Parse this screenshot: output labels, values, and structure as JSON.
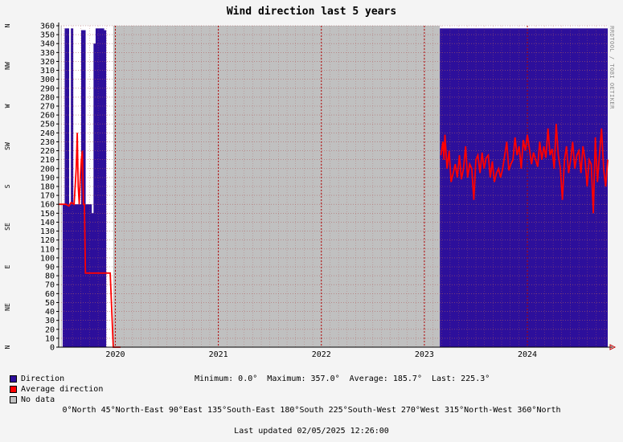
{
  "chart_data": {
    "type": "bar",
    "title": "Wind direction last 5 years",
    "ylim": [
      0,
      360
    ],
    "y_ticks": [
      0,
      10,
      20,
      30,
      40,
      50,
      60,
      70,
      80,
      90,
      100,
      110,
      120,
      130,
      140,
      150,
      160,
      170,
      180,
      190,
      200,
      210,
      220,
      230,
      240,
      250,
      260,
      270,
      280,
      290,
      300,
      310,
      320,
      330,
      340,
      350,
      360
    ],
    "compass_ticks": [
      {
        "value": 0,
        "label": "N"
      },
      {
        "value": 45,
        "label": "NE"
      },
      {
        "value": 90,
        "label": "E"
      },
      {
        "value": 135,
        "label": "SE"
      },
      {
        "value": 180,
        "label": "S"
      },
      {
        "value": 225,
        "label": "SW"
      },
      {
        "value": 270,
        "label": "W"
      },
      {
        "value": 315,
        "label": "NW"
      },
      {
        "value": 360,
        "label": "N"
      }
    ],
    "x_start": 2019.45,
    "x_end": 2024.78,
    "year_ticks": [
      {
        "value": 2020,
        "label": "2020"
      },
      {
        "value": 2021,
        "label": "2021"
      },
      {
        "value": 2022,
        "label": "2022"
      },
      {
        "value": 2023,
        "label": "2023"
      },
      {
        "value": 2024,
        "label": "2024"
      }
    ],
    "no_data_ranges": [
      [
        2019.47,
        2019.48
      ],
      [
        2019.98,
        2023.15
      ]
    ],
    "direction_bars": [
      {
        "x": 2019.5,
        "value": 160
      },
      {
        "x": 2019.52,
        "value": 357
      },
      {
        "x": 2019.54,
        "value": 357
      },
      {
        "x": 2019.56,
        "value": 160
      },
      {
        "x": 2019.58,
        "value": 357
      },
      {
        "x": 2019.6,
        "value": 160
      },
      {
        "x": 2019.62,
        "value": 160
      },
      {
        "x": 2019.64,
        "value": 160
      },
      {
        "x": 2019.66,
        "value": 160
      },
      {
        "x": 2019.68,
        "value": 355
      },
      {
        "x": 2019.7,
        "value": 355
      },
      {
        "x": 2019.72,
        "value": 160
      },
      {
        "x": 2019.74,
        "value": 160
      },
      {
        "x": 2019.76,
        "value": 160
      },
      {
        "x": 2019.78,
        "value": 150
      },
      {
        "x": 2019.8,
        "value": 340
      },
      {
        "x": 2019.82,
        "value": 357
      },
      {
        "x": 2019.84,
        "value": 357
      },
      {
        "x": 2019.86,
        "value": 357
      },
      {
        "x": 2019.88,
        "value": 357
      },
      {
        "x": 2019.9,
        "value": 355
      }
    ],
    "direction_block": {
      "x0": 2023.15,
      "x1": 2024.78,
      "value": 357
    },
    "average_series": [
      [
        2019.45,
        160
      ],
      [
        2019.5,
        160
      ],
      [
        2019.52,
        160
      ],
      [
        2019.55,
        158
      ],
      [
        2019.57,
        162
      ],
      [
        2019.6,
        160
      ],
      [
        2019.62,
        200
      ],
      [
        2019.63,
        240
      ],
      [
        2019.64,
        180
      ],
      [
        2019.65,
        160
      ],
      [
        2019.66,
        190
      ],
      [
        2019.67,
        210
      ],
      [
        2019.68,
        220
      ],
      [
        2019.69,
        160
      ],
      [
        2019.7,
        160
      ],
      [
        2019.71,
        83
      ],
      [
        2019.8,
        83
      ],
      [
        2019.9,
        83
      ],
      [
        2019.95,
        83
      ],
      [
        2019.98,
        0
      ],
      [
        2020.05,
        0
      ],
      [
        2023.16,
        215
      ],
      [
        2023.18,
        230
      ],
      [
        2023.19,
        210
      ],
      [
        2023.2,
        238
      ],
      [
        2023.22,
        200
      ],
      [
        2023.24,
        220
      ],
      [
        2023.26,
        185
      ],
      [
        2023.28,
        195
      ],
      [
        2023.3,
        205
      ],
      [
        2023.32,
        190
      ],
      [
        2023.34,
        215
      ],
      [
        2023.36,
        188
      ],
      [
        2023.38,
        200
      ],
      [
        2023.4,
        225
      ],
      [
        2023.42,
        190
      ],
      [
        2023.44,
        205
      ],
      [
        2023.46,
        200
      ],
      [
        2023.48,
        165
      ],
      [
        2023.5,
        210
      ],
      [
        2023.52,
        215
      ],
      [
        2023.54,
        195
      ],
      [
        2023.56,
        218
      ],
      [
        2023.58,
        200
      ],
      [
        2023.6,
        212
      ],
      [
        2023.62,
        215
      ],
      [
        2023.64,
        190
      ],
      [
        2023.66,
        208
      ],
      [
        2023.68,
        185
      ],
      [
        2023.7,
        195
      ],
      [
        2023.72,
        200
      ],
      [
        2023.74,
        190
      ],
      [
        2023.76,
        200
      ],
      [
        2023.78,
        215
      ],
      [
        2023.8,
        230
      ],
      [
        2023.82,
        198
      ],
      [
        2023.84,
        205
      ],
      [
        2023.86,
        210
      ],
      [
        2023.88,
        235
      ],
      [
        2023.9,
        215
      ],
      [
        2023.92,
        225
      ],
      [
        2023.94,
        200
      ],
      [
        2023.96,
        232
      ],
      [
        2023.98,
        220
      ],
      [
        2024.0,
        238
      ],
      [
        2024.02,
        222
      ],
      [
        2024.04,
        205
      ],
      [
        2024.06,
        218
      ],
      [
        2024.08,
        210
      ],
      [
        2024.1,
        202
      ],
      [
        2024.12,
        230
      ],
      [
        2024.14,
        210
      ],
      [
        2024.16,
        225
      ],
      [
        2024.18,
        212
      ],
      [
        2024.2,
        245
      ],
      [
        2024.22,
        215
      ],
      [
        2024.24,
        222
      ],
      [
        2024.26,
        200
      ],
      [
        2024.28,
        250
      ],
      [
        2024.3,
        215
      ],
      [
        2024.32,
        200
      ],
      [
        2024.34,
        165
      ],
      [
        2024.36,
        210
      ],
      [
        2024.38,
        225
      ],
      [
        2024.4,
        195
      ],
      [
        2024.42,
        210
      ],
      [
        2024.44,
        230
      ],
      [
        2024.46,
        200
      ],
      [
        2024.48,
        215
      ],
      [
        2024.5,
        220
      ],
      [
        2024.52,
        195
      ],
      [
        2024.54,
        225
      ],
      [
        2024.56,
        210
      ],
      [
        2024.58,
        180
      ],
      [
        2024.6,
        210
      ],
      [
        2024.62,
        205
      ],
      [
        2024.64,
        150
      ],
      [
        2024.66,
        235
      ],
      [
        2024.68,
        185
      ],
      [
        2024.7,
        215
      ],
      [
        2024.72,
        245
      ],
      [
        2024.74,
        200
      ],
      [
        2024.76,
        180
      ],
      [
        2024.78,
        210
      ]
    ],
    "colors": {
      "direction": "#2d0f9b",
      "average": "#ff0000",
      "no_data": "#c0c0c0",
      "plot_bg": "#ffffff",
      "grid": "#b06060",
      "year_line": "#b00000"
    }
  },
  "side_label": "RRDTOOL / TOBI OETIKER",
  "legend": [
    {
      "label": "Direction",
      "color": "#2d0f9b"
    },
    {
      "label": "Average direction",
      "color": "#ff0000"
    },
    {
      "label": "No data",
      "color": "#c0c0c0"
    }
  ],
  "stats": {
    "text": "Minimum: 0.0°  Maximum: 357.0°  Average: 185.7°  Last: 225.3°"
  },
  "compass_line": "0°North 45°North-East 90°East 135°South-East 180°South 225°South-West 270°West 315°North-West 360°North",
  "last_updated": "Last updated 02/05/2025 12:26:00"
}
